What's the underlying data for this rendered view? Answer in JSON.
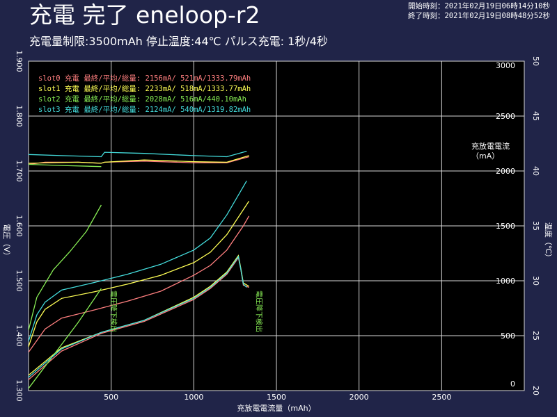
{
  "header": {
    "title": "充電 完了 eneloop-r2",
    "subtitle": "充電量制限:3500mAh 停止温度:44℃ パルス充電: 1秒/4秒",
    "start_time": "開始時刻：2021年02月19日06時14分10秒",
    "end_time": "終了時刻：2021年02月19日08時48分52秒"
  },
  "colors": {
    "background": "#202448",
    "plot_bg": "#000000",
    "grid": "#d8d8d8",
    "slot0": "#ff7f7f",
    "slot1": "#ffff55",
    "slot2": "#88ee55",
    "slot3": "#44dddd"
  },
  "chart_data": {
    "type": "line",
    "xlabel": "充放電電流量（mAh）",
    "xlim": [
      0,
      3000
    ],
    "xticks": [
      500,
      1000,
      1500,
      2000,
      2500
    ],
    "ylabel_left": "電圧（V）",
    "ylim_left": [
      1.3,
      1.9
    ],
    "yticks_left": [
      "1.300",
      "1.400",
      "1.500",
      "1.600",
      "1.700",
      "1.800",
      "1.900"
    ],
    "ylabel_current": "充放電電流（mA）",
    "ylim_current": [
      0,
      3000
    ],
    "yticks_current": [
      0,
      500,
      1000,
      1500,
      2000,
      2500,
      3000
    ],
    "ylabel_right": "温度（℃）",
    "ylim_right": [
      20,
      50
    ],
    "yticks_right": [
      20,
      25,
      30,
      35,
      40,
      45,
      50
    ],
    "grid": true,
    "legend": [
      "slot0  充電  最終/平均/総量: 2156mA/ 521mA/1333.79mAh",
      "slot1  充電  最終/平均/総量: 2233mA/ 518mA/1333.77mAh",
      "slot2  充電  最終/平均/総量: 2028mA/ 516mA/440.10mAh",
      "slot3  充電  最終/平均/総量: 2124mA/ 540mA/1319.82mAh"
    ],
    "annotations": [
      {
        "text": "電圧降下検出",
        "x": 440
      },
      {
        "text": "電圧降下検出",
        "x": 1320
      }
    ],
    "series": [
      {
        "slot": "slot0",
        "voltage": [
          [
            0,
            1.37
          ],
          [
            100,
            1.412
          ],
          [
            200,
            1.432
          ],
          [
            400,
            1.447
          ],
          [
            600,
            1.463
          ],
          [
            800,
            1.481
          ],
          [
            1000,
            1.51
          ],
          [
            1100,
            1.528
          ],
          [
            1200,
            1.556
          ],
          [
            1300,
            1.6
          ],
          [
            1334,
            1.618
          ]
        ],
        "current": [
          [
            0,
            2060
          ],
          [
            100,
            2080
          ],
          [
            300,
            2080
          ],
          [
            440,
            2070
          ],
          [
            460,
            2080
          ],
          [
            700,
            2090
          ],
          [
            1000,
            2075
          ],
          [
            1200,
            2075
          ],
          [
            1334,
            2130
          ]
        ],
        "temperature": [
          [
            0,
            21.0
          ],
          [
            200,
            23.6
          ],
          [
            440,
            25.2
          ],
          [
            700,
            26.3
          ],
          [
            1000,
            28.3
          ],
          [
            1100,
            29.3
          ],
          [
            1200,
            30.6
          ],
          [
            1270,
            32.1
          ],
          [
            1285,
            31.0
          ],
          [
            1300,
            29.6
          ],
          [
            1334,
            29.4
          ]
        ]
      },
      {
        "slot": "slot1",
        "voltage": [
          [
            0,
            1.38
          ],
          [
            50,
            1.425
          ],
          [
            100,
            1.448
          ],
          [
            200,
            1.468
          ],
          [
            400,
            1.48
          ],
          [
            600,
            1.494
          ],
          [
            800,
            1.51
          ],
          [
            1000,
            1.533
          ],
          [
            1100,
            1.552
          ],
          [
            1200,
            1.584
          ],
          [
            1334,
            1.645
          ]
        ],
        "current": [
          [
            0,
            2070
          ],
          [
            300,
            2080
          ],
          [
            440,
            2070
          ],
          [
            460,
            2080
          ],
          [
            700,
            2100
          ],
          [
            1000,
            2085
          ],
          [
            1200,
            2080
          ],
          [
            1334,
            2140
          ]
        ],
        "temperature": [
          [
            0,
            21.4
          ],
          [
            200,
            23.9
          ],
          [
            440,
            25.3
          ],
          [
            700,
            26.4
          ],
          [
            1000,
            28.5
          ],
          [
            1100,
            29.5
          ],
          [
            1200,
            30.8
          ],
          [
            1270,
            32.3
          ],
          [
            1285,
            31.1
          ],
          [
            1300,
            29.8
          ],
          [
            1334,
            29.5
          ]
        ]
      },
      {
        "slot": "slot2",
        "voltage": [
          [
            0,
            1.41
          ],
          [
            50,
            1.47
          ],
          [
            150,
            1.52
          ],
          [
            250,
            1.553
          ],
          [
            350,
            1.59
          ],
          [
            440,
            1.638
          ]
        ],
        "current": [
          [
            0,
            2060
          ],
          [
            200,
            2050
          ],
          [
            440,
            2040
          ]
        ],
        "temperature": [
          [
            0,
            20.2
          ],
          [
            100,
            22.2
          ],
          [
            200,
            24.2
          ],
          [
            300,
            26.2
          ],
          [
            400,
            28.4
          ],
          [
            440,
            29.3
          ]
        ]
      },
      {
        "slot": "slot3",
        "voltage": [
          [
            0,
            1.39
          ],
          [
            50,
            1.438
          ],
          [
            100,
            1.461
          ],
          [
            200,
            1.483
          ],
          [
            400,
            1.497
          ],
          [
            600,
            1.512
          ],
          [
            800,
            1.53
          ],
          [
            1000,
            1.556
          ],
          [
            1100,
            1.578
          ],
          [
            1200,
            1.62
          ],
          [
            1320,
            1.682
          ]
        ],
        "current": [
          [
            0,
            2150
          ],
          [
            200,
            2140
          ],
          [
            440,
            2130
          ],
          [
            460,
            2170
          ],
          [
            700,
            2160
          ],
          [
            1000,
            2140
          ],
          [
            1200,
            2130
          ],
          [
            1320,
            2180
          ]
        ],
        "temperature": [
          [
            0,
            21.2
          ],
          [
            200,
            23.8
          ],
          [
            440,
            25.3
          ],
          [
            700,
            26.4
          ],
          [
            1000,
            28.4
          ],
          [
            1100,
            29.4
          ],
          [
            1200,
            30.7
          ],
          [
            1270,
            32.2
          ],
          [
            1285,
            31.0
          ],
          [
            1300,
            29.7
          ],
          [
            1320,
            29.4
          ]
        ]
      }
    ]
  }
}
